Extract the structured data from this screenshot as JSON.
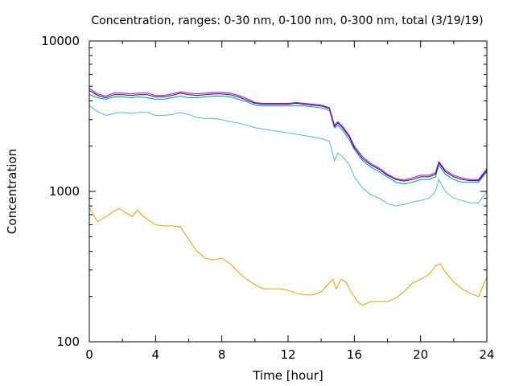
{
  "chart_data": {
    "type": "line",
    "title": "Concentration, ranges: 0-30 nm, 0-100 nm, 0-300 nm, total (3/19/19)",
    "xlabel": "Time [hour]",
    "ylabel": "Concentration",
    "xlim": [
      0,
      24
    ],
    "ylim": [
      100,
      10000
    ],
    "yscale": "log",
    "xticks": [
      0,
      4,
      8,
      12,
      16,
      20,
      24
    ],
    "xtick_labels": [
      "0",
      "4",
      "8",
      "12",
      "16",
      "20",
      "24"
    ],
    "yticks": [
      100,
      1000,
      10000
    ],
    "ytick_labels": [
      "100",
      "1000",
      "10000"
    ],
    "grid": false,
    "legend": "none",
    "series": [
      {
        "color": "#e69f00",
        "x": [
          0,
          0.5,
          1,
          1.5,
          1.8,
          2.2,
          2.6,
          2.9,
          3.2,
          3.6,
          4,
          4.5,
          5,
          5.5,
          6,
          6.5,
          7,
          7.5,
          8,
          8.5,
          9,
          9.5,
          10,
          10.5,
          11,
          11.5,
          12,
          12.5,
          13,
          13.5,
          14,
          14.4,
          14.7,
          14.9,
          15.2,
          15.5,
          15.8,
          16.2,
          16.5,
          17,
          17.5,
          18,
          18.5,
          19,
          19.5,
          20,
          20.5,
          20.9,
          21.2,
          21.5,
          22,
          22.5,
          23,
          23.5,
          24
        ],
        "y": [
          780,
          630,
          680,
          740,
          770,
          720,
          680,
          750,
          690,
          640,
          600,
          590,
          590,
          580,
          480,
          400,
          360,
          350,
          360,
          330,
          290,
          260,
          240,
          225,
          225,
          225,
          220,
          210,
          205,
          205,
          215,
          240,
          260,
          225,
          260,
          250,
          215,
          185,
          175,
          185,
          185,
          185,
          195,
          215,
          245,
          260,
          280,
          320,
          330,
          290,
          250,
          225,
          210,
          200,
          270
        ]
      },
      {
        "color": "#56b4e9",
        "x": [
          0,
          0.5,
          1,
          1.5,
          2,
          2.5,
          3,
          3.5,
          4,
          4.5,
          5,
          5.5,
          6,
          6.5,
          7,
          7.5,
          8,
          8.5,
          9,
          9.5,
          10,
          10.5,
          11,
          11.5,
          12,
          12.5,
          13,
          13.5,
          14,
          14.5,
          14.8,
          15,
          15.3,
          15.7,
          16,
          16.5,
          17,
          17.5,
          18,
          18.5,
          19,
          19.5,
          20,
          20.5,
          20.9,
          21.1,
          21.5,
          22,
          22.5,
          23,
          23.5,
          24
        ],
        "y": [
          3700,
          3400,
          3200,
          3300,
          3350,
          3300,
          3350,
          3350,
          3200,
          3200,
          3250,
          3350,
          3250,
          3100,
          3050,
          3050,
          3000,
          2900,
          2850,
          2750,
          2650,
          2600,
          2550,
          2500,
          2450,
          2400,
          2350,
          2300,
          2250,
          2150,
          1600,
          1800,
          1700,
          1500,
          1250,
          1050,
          950,
          900,
          830,
          800,
          820,
          850,
          870,
          900,
          1000,
          1200,
          1000,
          900,
          870,
          840,
          840,
          1000
        ]
      },
      {
        "color": "#009e73",
        "x": [
          0,
          0.5,
          1,
          1.5,
          2,
          2.5,
          3,
          3.5,
          4,
          4.5,
          5,
          5.5,
          6,
          6.5,
          7,
          7.5,
          8,
          8.5,
          9,
          9.5,
          10,
          10.5,
          11,
          11.5,
          12,
          12.5,
          13,
          13.5,
          14,
          14.5,
          14.8,
          15,
          15.3,
          15.7,
          16,
          16.5,
          17,
          17.5,
          18,
          18.5,
          19,
          19.5,
          20,
          20.5,
          20.9,
          21.1,
          21.5,
          22,
          22.5,
          23,
          23.5,
          24
        ],
        "y": [
          4400,
          4200,
          4100,
          4250,
          4250,
          4200,
          4250,
          4200,
          4100,
          4100,
          4200,
          4300,
          4200,
          4200,
          4250,
          4300,
          4300,
          4250,
          4100,
          3950,
          3750,
          3700,
          3700,
          3700,
          3700,
          3700,
          3700,
          3650,
          3600,
          3450,
          2650,
          2750,
          2550,
          2200,
          1900,
          1600,
          1450,
          1350,
          1250,
          1150,
          1120,
          1150,
          1200,
          1200,
          1250,
          1500,
          1300,
          1200,
          1150,
          1150,
          1150,
          1350
        ]
      },
      {
        "color": "#0000cc",
        "x": [
          0,
          0.5,
          1,
          1.5,
          2,
          2.5,
          3,
          3.5,
          4,
          4.5,
          5,
          5.5,
          6,
          6.5,
          7,
          7.5,
          8,
          8.5,
          9,
          9.5,
          10,
          10.5,
          11,
          11.5,
          12,
          12.5,
          13,
          13.5,
          14,
          14.5,
          14.8,
          15,
          15.3,
          15.7,
          16,
          16.5,
          17,
          17.5,
          18,
          18.5,
          19,
          19.5,
          20,
          20.5,
          20.9,
          21.1,
          21.5,
          22,
          22.5,
          23,
          23.5,
          24
        ],
        "y": [
          4700,
          4350,
          4200,
          4400,
          4400,
          4350,
          4400,
          4400,
          4250,
          4250,
          4350,
          4500,
          4400,
          4350,
          4400,
          4450,
          4450,
          4400,
          4250,
          4050,
          3850,
          3800,
          3800,
          3800,
          3800,
          3850,
          3800,
          3750,
          3700,
          3550,
          2700,
          2850,
          2650,
          2300,
          1950,
          1650,
          1500,
          1400,
          1280,
          1200,
          1170,
          1200,
          1250,
          1250,
          1300,
          1550,
          1350,
          1250,
          1200,
          1180,
          1180,
          1380
        ]
      },
      {
        "color": "#cc0099",
        "x": [
          0,
          0.5,
          1,
          1.5,
          2,
          2.5,
          3,
          3.5,
          4,
          4.5,
          5,
          5.5,
          6,
          6.5,
          7,
          7.5,
          8,
          8.5,
          9,
          9.5,
          10,
          10.5,
          11,
          11.5,
          12,
          12.5,
          13,
          13.5,
          14,
          14.5,
          14.8,
          15,
          15.3,
          15.7,
          16,
          16.5,
          17,
          17.5,
          18,
          18.5,
          19,
          19.5,
          20,
          20.5,
          20.9,
          21.1,
          21.5,
          22,
          22.5,
          23,
          23.5,
          24
        ],
        "y": [
          4850,
          4450,
          4300,
          4500,
          4500,
          4450,
          4500,
          4500,
          4350,
          4350,
          4450,
          4600,
          4500,
          4450,
          4500,
          4550,
          4550,
          4500,
          4350,
          4150,
          3900,
          3850,
          3850,
          3850,
          3850,
          3900,
          3850,
          3800,
          3750,
          3600,
          2750,
          2900,
          2700,
          2350,
          2000,
          1700,
          1530,
          1430,
          1300,
          1220,
          1190,
          1230,
          1280,
          1280,
          1330,
          1580,
          1380,
          1280,
          1230,
          1200,
          1200,
          1420
        ]
      }
    ]
  }
}
